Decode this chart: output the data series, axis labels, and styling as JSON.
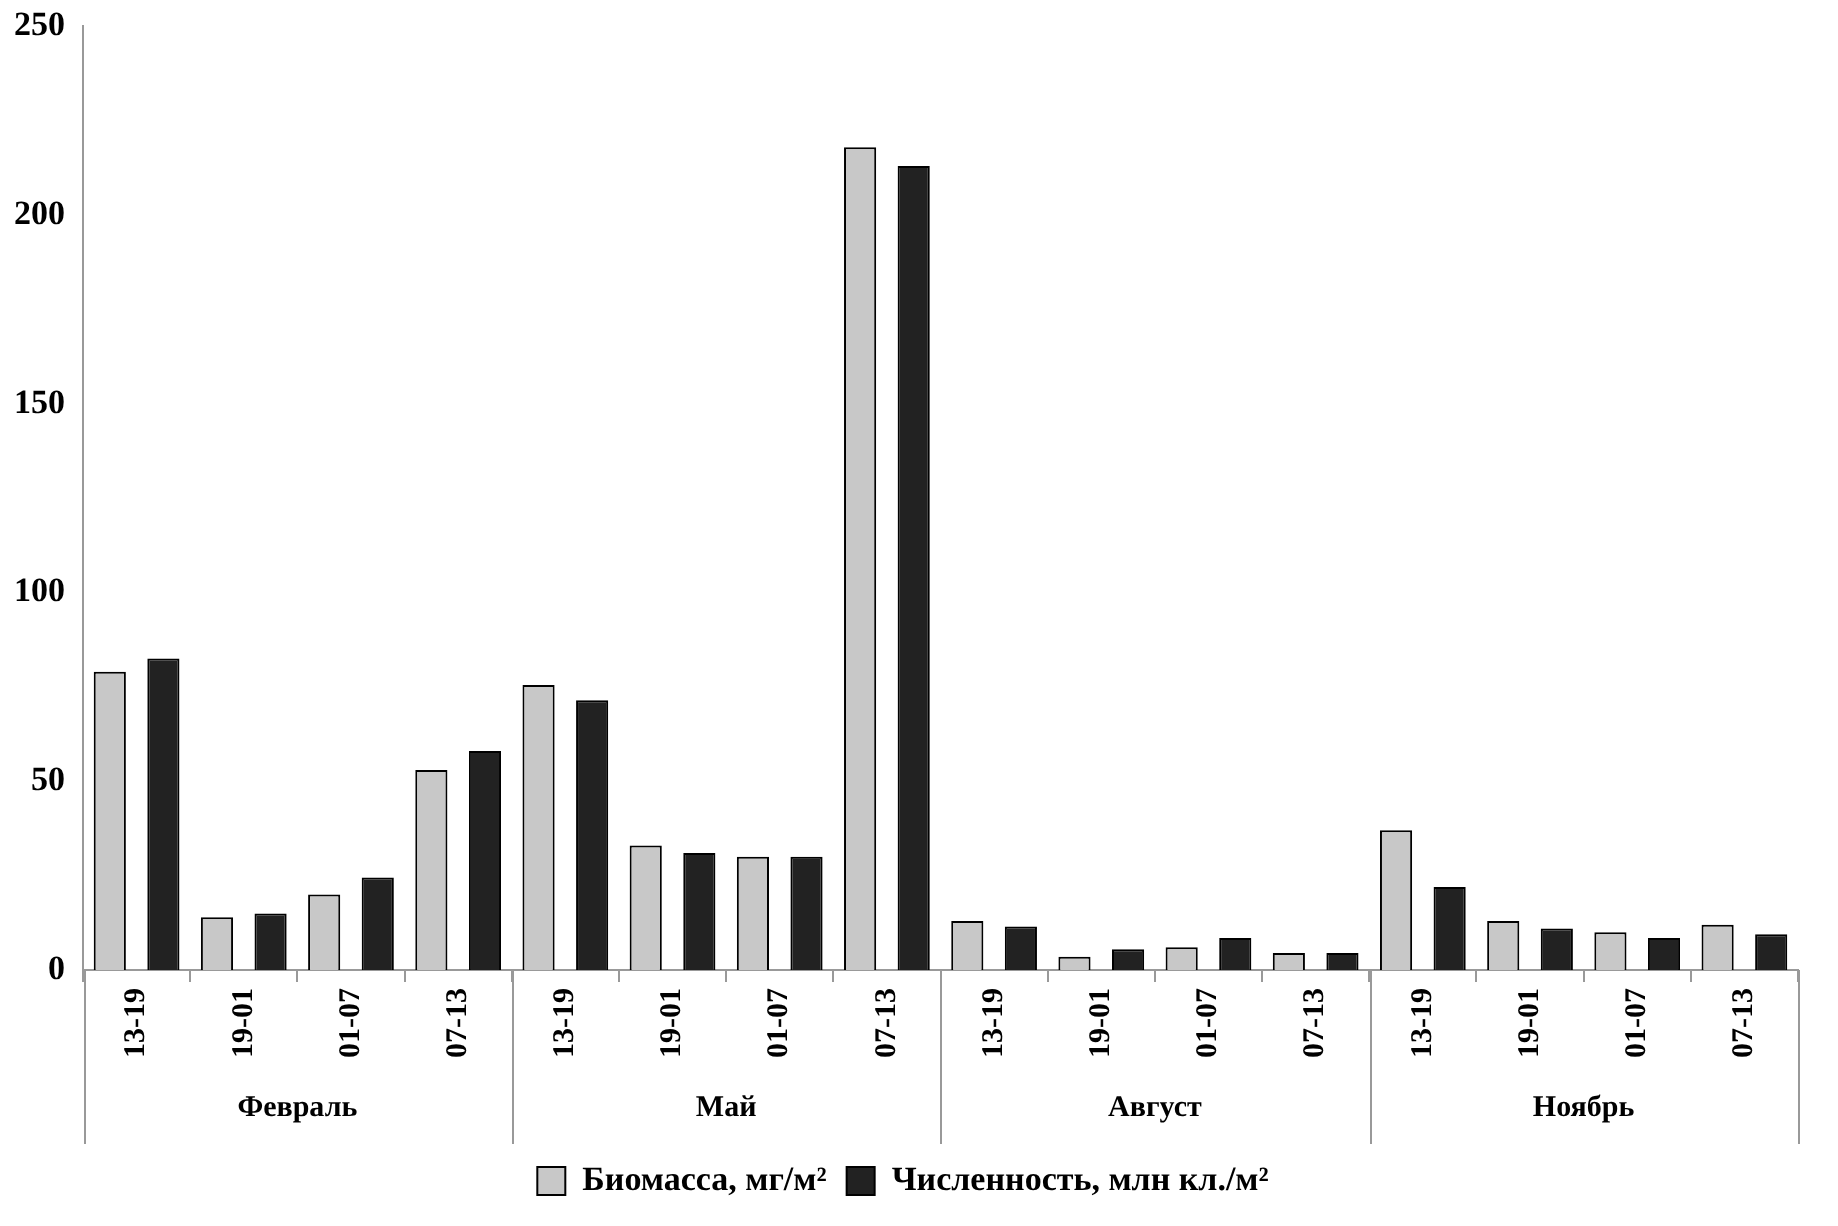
{
  "chart_data": {
    "type": "bar",
    "categories": [
      "13-19",
      "19-01",
      "01-07",
      "07-13",
      "13-19",
      "19-01",
      "01-07",
      "07-13",
      "13-19",
      "19-01",
      "01-07",
      "07-13",
      "13-19",
      "19-01",
      "01-07",
      "07-13"
    ],
    "series": [
      {
        "name": "Биомасса, мг/м²",
        "color": "#c8c8c8",
        "values": [
          79,
          14,
          20,
          53,
          75.5,
          33,
          30,
          218,
          13,
          3.5,
          6,
          4.5,
          37,
          13,
          10,
          12
        ]
      },
      {
        "name": "Численность, млн кл./м²",
        "color": "#222222",
        "values": [
          82.5,
          15,
          24.5,
          58,
          71.5,
          31,
          30,
          213,
          11.5,
          5.5,
          8.5,
          4.5,
          22,
          11,
          8.5,
          9.5
        ]
      }
    ],
    "annotations": [
      "Февраль",
      "Май",
      "Август",
      "Ноябрь"
    ],
    "ylim": [
      0,
      250
    ],
    "yticks": [
      0,
      50,
      100,
      150,
      200,
      250
    ],
    "grid": false,
    "legend": "bottom"
  }
}
